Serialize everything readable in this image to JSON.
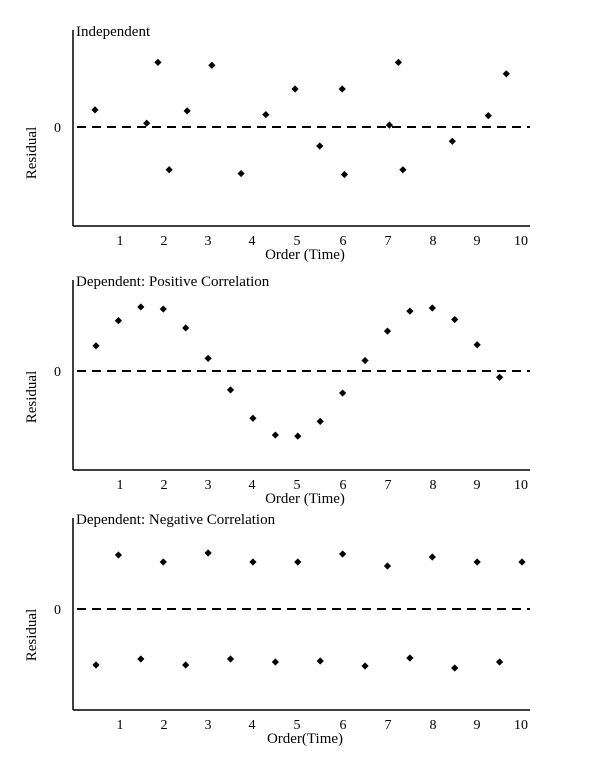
{
  "chart_data": [
    {
      "type": "scatter",
      "title": "Independent",
      "xlabel": "Order (Time)",
      "ylabel": "Residual",
      "ytick_labels": [
        "0"
      ],
      "xticks": [
        1,
        2,
        3,
        4,
        5,
        6,
        7,
        8,
        9,
        10
      ],
      "xlim": [
        0.0,
        10.5
      ],
      "ylim": [
        -1.0,
        1.0
      ],
      "zero_line": "dashed",
      "grid": false,
      "series": [
        {
          "x": [
            0.5,
            1.65,
            1.9,
            2.15,
            2.55,
            3.1,
            3.75,
            4.3,
            4.95,
            5.5,
            6.0,
            6.05,
            7.05,
            7.25,
            7.35,
            8.45,
            9.25,
            9.65
          ],
          "y": [
            0.18,
            0.04,
            0.68,
            -0.45,
            0.17,
            0.65,
            -0.49,
            0.13,
            0.4,
            -0.2,
            0.4,
            -0.5,
            0.02,
            0.68,
            -0.45,
            -0.15,
            0.12,
            0.56
          ]
        }
      ]
    },
    {
      "type": "scatter",
      "title": "Dependent: Positive Correlation",
      "xlabel": "Order (Time)",
      "ylabel": "Residual",
      "ytick_labels": [
        "0"
      ],
      "xticks": [
        1,
        2,
        3,
        4,
        5,
        6,
        7,
        8,
        9,
        10
      ],
      "xlim": [
        0.0,
        10.5
      ],
      "ylim": [
        -1.0,
        1.0
      ],
      "zero_line": "dashed",
      "grid": false,
      "series": [
        {
          "x": [
            0.5,
            1.0,
            1.5,
            2.0,
            2.5,
            3.0,
            3.5,
            4.0,
            4.5,
            5.0,
            5.5,
            6.0,
            6.5,
            7.0,
            7.5,
            8.0,
            8.5,
            9.0,
            9.5
          ],
          "y": [
            0.24,
            0.48,
            0.61,
            0.59,
            0.41,
            0.12,
            -0.18,
            -0.45,
            -0.61,
            -0.62,
            -0.48,
            -0.21,
            0.1,
            0.38,
            0.57,
            0.6,
            0.49,
            0.25,
            -0.06
          ]
        }
      ]
    },
    {
      "type": "scatter",
      "title": "Dependent: Negative Correlation",
      "xlabel": "Order(Time)",
      "ylabel": "Residual",
      "ytick_labels": [
        "0"
      ],
      "xticks": [
        1,
        2,
        3,
        4,
        5,
        6,
        7,
        8,
        9,
        10
      ],
      "xlim": [
        0.0,
        10.5
      ],
      "ylim": [
        -1.0,
        1.0
      ],
      "zero_line": "dashed",
      "grid": false,
      "series": [
        {
          "x": [
            0.5,
            1.0,
            1.5,
            2.0,
            2.5,
            3.0,
            3.5,
            4.0,
            4.5,
            5.0,
            5.5,
            6.0,
            6.5,
            7.0,
            7.5,
            8.0,
            8.5,
            9.0,
            9.5,
            10.0
          ],
          "y": [
            -0.56,
            0.54,
            -0.5,
            0.47,
            -0.56,
            0.56,
            -0.5,
            0.47,
            -0.53,
            0.47,
            -0.52,
            0.55,
            -0.57,
            0.43,
            -0.49,
            0.52,
            -0.59,
            0.47,
            -0.53,
            0.47
          ]
        }
      ]
    }
  ]
}
